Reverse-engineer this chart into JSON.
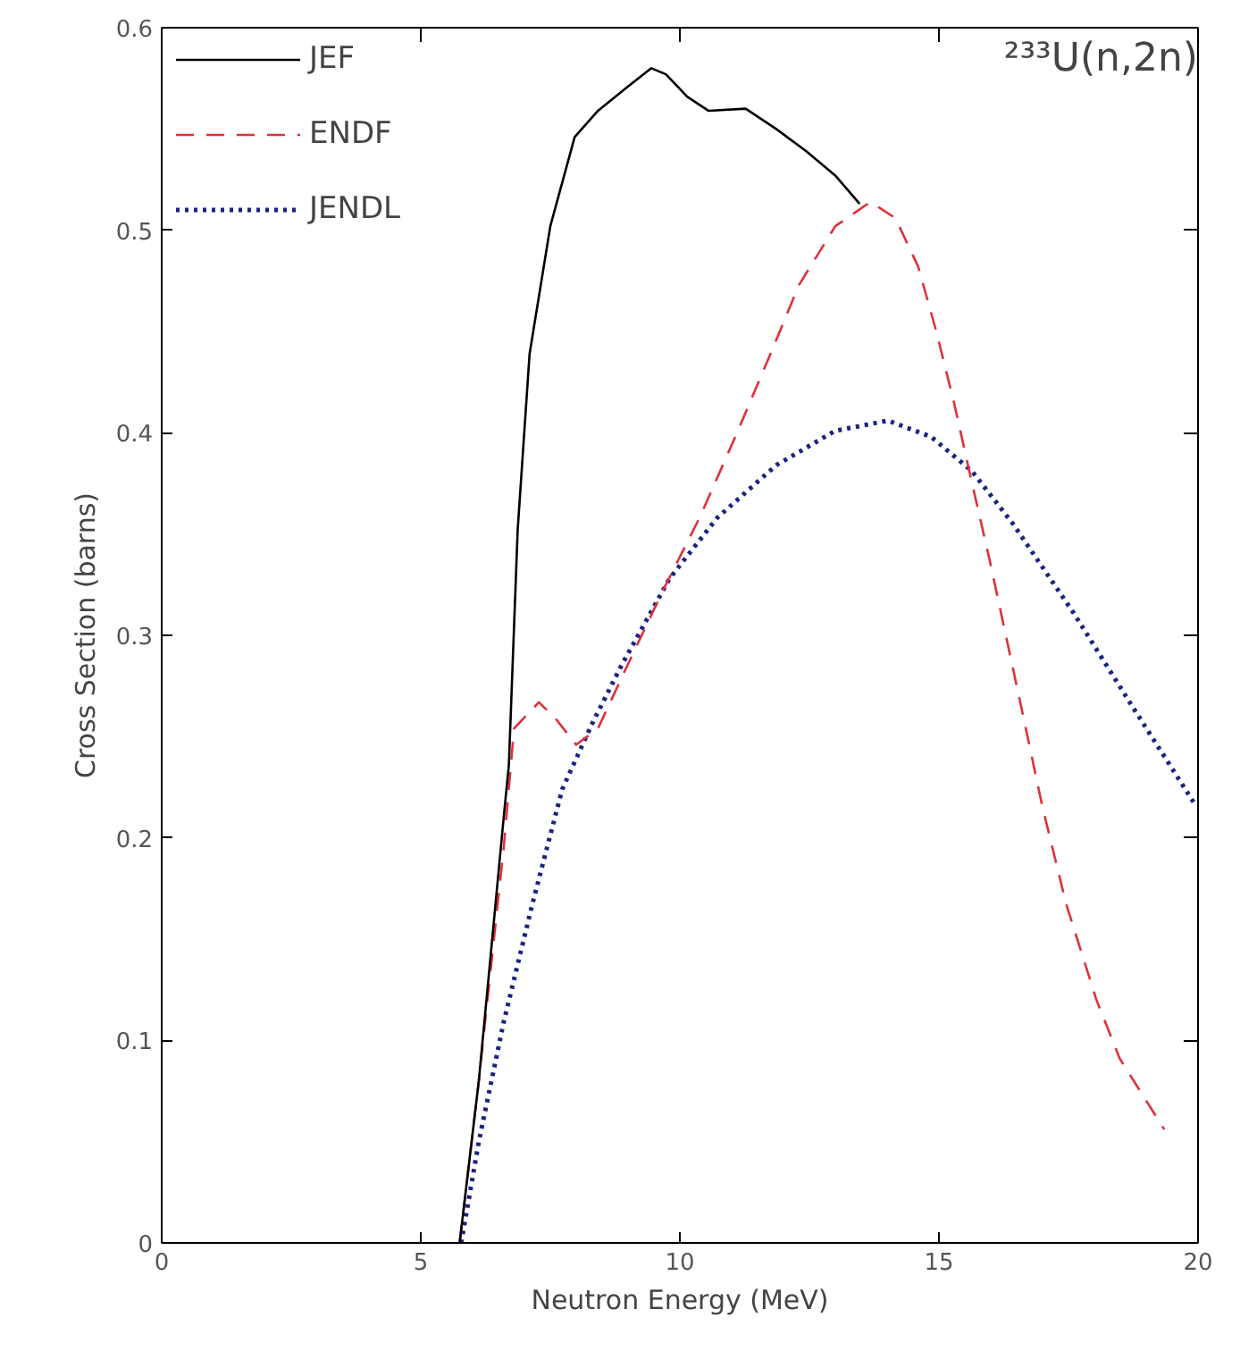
{
  "chart_data": {
    "type": "line",
    "xlabel": "Neutron Energy (MeV)",
    "ylabel": "Cross Section (barns)",
    "annotations": [
      "²³³U(n,2n)"
    ],
    "xlim": [
      0,
      20
    ],
    "ylim": [
      0,
      0.6
    ],
    "xticks": [
      0,
      5,
      10,
      15,
      20
    ],
    "yticks": [
      0,
      0.1,
      0.2,
      0.3,
      0.4,
      0.5,
      0.6
    ],
    "grid": false,
    "legend": "top left",
    "marker": "none",
    "series": [
      {
        "name": "JEF",
        "color": "#000000",
        "line_style": "solid",
        "x": [
          5.75,
          6.12,
          6.6,
          6.7,
          6.87,
          7.1,
          7.5,
          7.97,
          8.42,
          9.0,
          9.45,
          9.73,
          10.14,
          10.55,
          11.27,
          11.86,
          12.44,
          13.0,
          13.47
        ],
        "values": [
          0,
          0.08,
          0.21,
          0.236,
          0.352,
          0.439,
          0.502,
          0.546,
          0.559,
          0.571,
          0.58,
          0.577,
          0.566,
          0.559,
          0.56,
          0.55,
          0.539,
          0.527,
          0.513
        ]
      },
      {
        "name": "ENDF",
        "color": "#e0303c",
        "line_style": "dashed",
        "x": [
          5.75,
          6.12,
          6.6,
          6.8,
          7.28,
          7.63,
          8.0,
          8.42,
          8.93,
          9.69,
          10.38,
          11.07,
          11.75,
          12.3,
          13.0,
          13.68,
          14.16,
          14.6,
          14.95,
          15.29,
          15.64,
          15.98,
          16.56,
          17.0,
          17.46,
          18.04,
          18.49,
          19.35
        ],
        "values": [
          0,
          0.08,
          0.195,
          0.254,
          0.267,
          0.258,
          0.246,
          0.254,
          0.282,
          0.323,
          0.358,
          0.398,
          0.439,
          0.473,
          0.502,
          0.514,
          0.506,
          0.482,
          0.45,
          0.415,
          0.375,
          0.337,
          0.268,
          0.215,
          0.167,
          0.12,
          0.091,
          0.056
        ]
      },
      {
        "name": "JENDL",
        "color": "#1a237e",
        "line_style": "dotted",
        "x": [
          5.78,
          6.12,
          6.6,
          7.15,
          7.73,
          8.3,
          8.87,
          9.8,
          10.72,
          11.86,
          13.0,
          14.02,
          14.85,
          15.64,
          16.43,
          17.6,
          18.73,
          19.93
        ],
        "values": [
          0,
          0.05,
          0.109,
          0.167,
          0.224,
          0.256,
          0.285,
          0.328,
          0.358,
          0.384,
          0.401,
          0.406,
          0.398,
          0.381,
          0.355,
          0.311,
          0.265,
          0.217
        ]
      }
    ]
  }
}
